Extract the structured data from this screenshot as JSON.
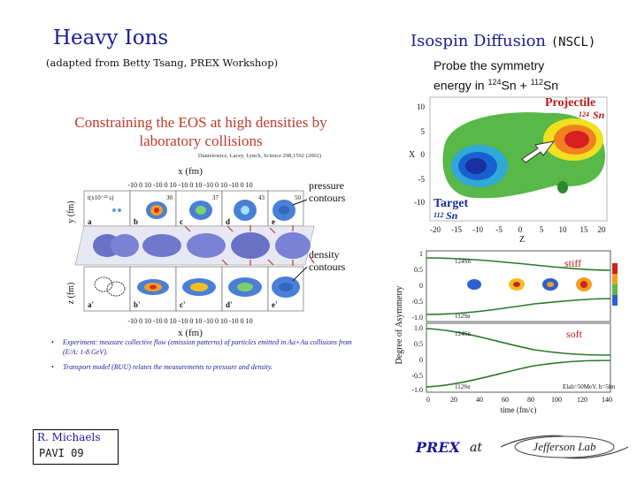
{
  "header": {
    "left_title": "Heavy Ions",
    "left_subtitle": "(adapted from Betty Tsang, PREX Workshop)",
    "right_title": "Isospin Diffusion",
    "right_title_suffix": "(NSCL)",
    "probe_line1": "Probe the symmetry",
    "probe_line2_prefix": "energy in",
    "probe_sup1": "124",
    "probe_el1": "Sn +",
    "probe_sup2": "112",
    "probe_el2": "Sn"
  },
  "left_figure": {
    "title_line1": "Constraining the EOS at high densities by",
    "title_line2": "laboratory collisions",
    "citation": "Danielewicz, Lacey, Lynch, Science 298,1592 (2002)",
    "xaxis_label": "x (fm)",
    "yaxis_label_top": "y (fm)",
    "yaxis_label_bottom": "z (fm)",
    "top_tick_row": "-10 0 10 -10 0 10 -10 0 10 -10 0 10 -10 0 10",
    "bottom_tick_row": "-10 0 10 -10 0 10 -10 0 10 -10 0 10 -10 0 10",
    "time_labels": [
      "t(x10⁻²³ s)",
      "30",
      "37",
      "43",
      "50"
    ],
    "panel_letters_top": [
      "a",
      "b",
      "c",
      "d",
      "e"
    ],
    "panel_letters_bottom": [
      "a'",
      "b'",
      "c'",
      "d'",
      "e'"
    ],
    "pressure_label": [
      "pressure",
      "contours"
    ],
    "density_label": [
      "density",
      "contours"
    ],
    "bullet1": "Experiment: measure collective flow (emission patterns) of particles emitted in Au+Au collisions from (E/A: 1-8 GeV).",
    "bullet2": "Transport model (BUU) relates the measurements to pressure and density."
  },
  "contour_plot": {
    "projectile_label": "Projectile",
    "projectile_isotope_sup": "124",
    "projectile_isotope": "Sn",
    "target_label": "Target",
    "target_isotope_sup": "112",
    "target_isotope": "Sn",
    "y_ticks": [
      "10",
      "5",
      "0",
      "-5",
      "-10"
    ],
    "x_ticks": [
      "-20",
      "-15",
      "-10",
      "-5",
      "0",
      "5",
      "10",
      "15",
      "20"
    ],
    "y_label": "X",
    "x_label": "Z"
  },
  "asymmetry_plot": {
    "y_label": "Degree of Asymmetry",
    "top_panel_label": "stiff",
    "bottom_panel_label": "soft",
    "top_ticks": [
      "1",
      "0.5",
      "0",
      "-0.5",
      "-1.0"
    ],
    "bottom_ticks": [
      "1.0",
      "0.5",
      "0",
      "-0.5",
      "-1.0"
    ],
    "curve_labels": [
      "124Sn",
      "112Sn",
      "124Sn",
      "112Sn"
    ],
    "x_ticks": [
      "0",
      "20",
      "40",
      "60",
      "80",
      "100",
      "120",
      "140"
    ],
    "x_label": "time (fm/c)",
    "annotation": "Elab=50MeV, b=5fm"
  },
  "footer": {
    "author": "R. Michaels",
    "event": "PAVI 09",
    "prex": "PREX",
    "at": "at",
    "logo_text": "Jefferson Lab"
  }
}
